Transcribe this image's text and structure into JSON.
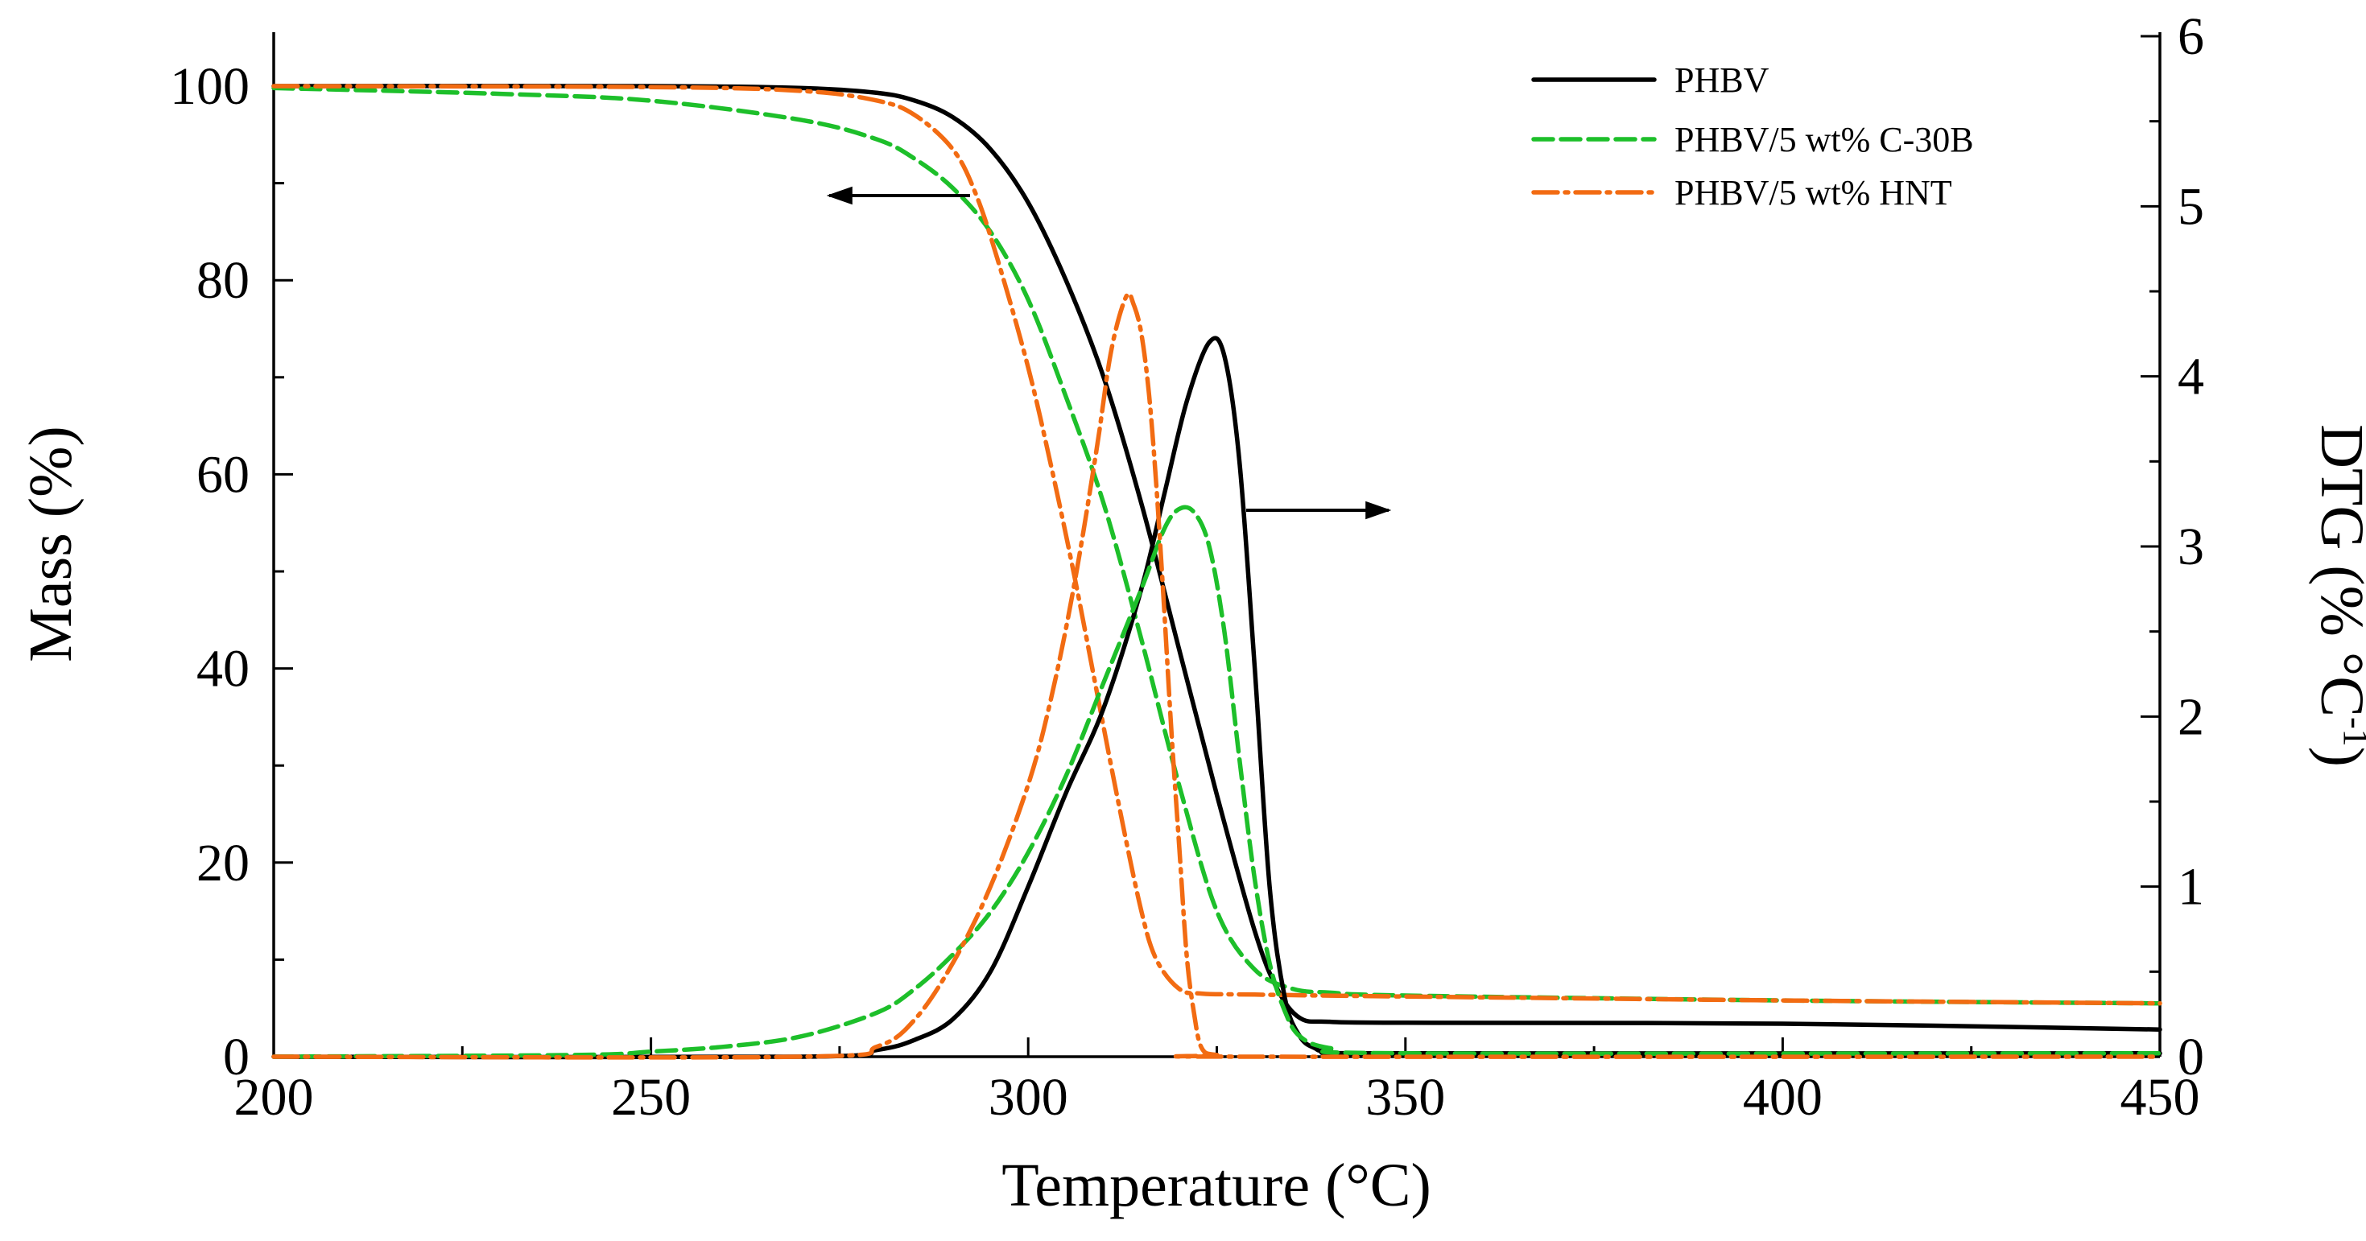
{
  "chart_data": {
    "type": "line",
    "title": "",
    "xlabel": "Temperature (°C)",
    "ylabel_left": "Mass (%)",
    "ylabel_right": "DTG (% °C",
    "ylabel_right_sup": "-1",
    "ylabel_right_close": ")",
    "xlim": [
      200,
      450
    ],
    "ylim_left": [
      0,
      100
    ],
    "ylim_right": [
      0,
      6
    ],
    "x_ticks": [
      200,
      250,
      300,
      350,
      400,
      450
    ],
    "y_ticks_left": [
      0,
      20,
      40,
      60,
      80,
      100
    ],
    "y_ticks_right": [
      0,
      1,
      2,
      3,
      4,
      5,
      6
    ],
    "legend_position": "top-right",
    "series": [
      {
        "name": "PHBV",
        "color": "#000000",
        "dash": "solid",
        "axis": "left",
        "kind": "TGA",
        "x": [
          200,
          250,
          270,
          280,
          285,
          290,
          295,
          300,
          305,
          310,
          315,
          320,
          325,
          330,
          333,
          336,
          340,
          350,
          400,
          450
        ],
        "y": [
          100,
          100,
          99.8,
          99.3,
          98.5,
          96.8,
          93.5,
          88,
          80,
          70,
          57,
          42,
          27,
          13,
          7,
          4,
          3.6,
          3.5,
          3.4,
          2.8
        ]
      },
      {
        "name": "PHBV/5 wt% C-30B",
        "color": "#1dbf2a",
        "dash": "dashed",
        "axis": "left",
        "kind": "TGA",
        "x": [
          200,
          230,
          250,
          270,
          280,
          285,
          290,
          295,
          300,
          305,
          310,
          315,
          320,
          325,
          330,
          335,
          340,
          350,
          400,
          450
        ],
        "y": [
          99.8,
          99.2,
          98.5,
          96.5,
          94.5,
          92.5,
          89.5,
          85,
          78,
          68,
          57,
          43,
          28,
          15,
          9,
          7,
          6.6,
          6.3,
          5.8,
          5.5
        ]
      },
      {
        "name": "PHBV/5 wt% HNT",
        "color": "#f26b12",
        "dash": "dashdot",
        "axis": "left",
        "kind": "TGA",
        "x": [
          200,
          250,
          270,
          280,
          285,
          290,
          293,
          296,
          300,
          303,
          306,
          309,
          312,
          315,
          317,
          320,
          323,
          330,
          350,
          400,
          450
        ],
        "y": [
          100,
          99.9,
          99.5,
          98.5,
          97,
          93.5,
          89,
          82,
          71,
          61,
          50,
          38,
          26,
          15,
          10,
          7,
          6.5,
          6.4,
          6.2,
          5.8,
          5.5
        ]
      },
      {
        "name": "PHBV",
        "color": "#000000",
        "dash": "solid",
        "axis": "right",
        "kind": "DTG",
        "x": [
          200,
          270,
          280,
          285,
          290,
          295,
          300,
          305,
          310,
          315,
          318,
          321,
          324,
          326,
          328,
          330,
          332,
          334,
          336,
          338,
          340,
          350,
          450
        ],
        "y": [
          0,
          0,
          0.04,
          0.1,
          0.22,
          0.5,
          1.0,
          1.55,
          2.05,
          2.75,
          3.3,
          3.85,
          4.2,
          4.12,
          3.5,
          2.3,
          1.0,
          0.35,
          0.12,
          0.05,
          0.03,
          0.02,
          0.02
        ]
      },
      {
        "name": "PHBV/5 wt% C-30B",
        "color": "#1dbf2a",
        "dash": "dashed",
        "axis": "right",
        "kind": "DTG",
        "x": [
          200,
          240,
          250,
          260,
          270,
          280,
          285,
          290,
          295,
          300,
          305,
          310,
          315,
          318,
          320,
          322,
          324,
          326,
          328,
          330,
          332,
          334,
          336,
          340,
          350,
          450
        ],
        "y": [
          0,
          0.01,
          0.03,
          0.06,
          0.12,
          0.26,
          0.4,
          0.6,
          0.85,
          1.2,
          1.65,
          2.2,
          2.75,
          3.1,
          3.22,
          3.2,
          3.0,
          2.5,
          1.75,
          1.05,
          0.55,
          0.27,
          0.12,
          0.05,
          0.02,
          0.02
        ]
      },
      {
        "name": "PHBV/5 wt% HNT",
        "color": "#f26b12",
        "dash": "dashdot",
        "axis": "right",
        "kind": "DTG",
        "x": [
          200,
          270,
          280,
          285,
          290,
          295,
          300,
          303,
          306,
          309,
          311,
          313,
          314,
          315,
          316,
          317,
          318,
          319,
          320,
          321,
          322,
          323,
          325,
          330,
          450
        ],
        "y": [
          0,
          0,
          0.06,
          0.22,
          0.55,
          1.0,
          1.6,
          2.1,
          2.75,
          3.55,
          4.15,
          4.47,
          4.42,
          4.25,
          3.9,
          3.35,
          2.65,
          1.9,
          1.25,
          0.6,
          0.25,
          0.05,
          0.01,
          0,
          0
        ]
      }
    ]
  }
}
